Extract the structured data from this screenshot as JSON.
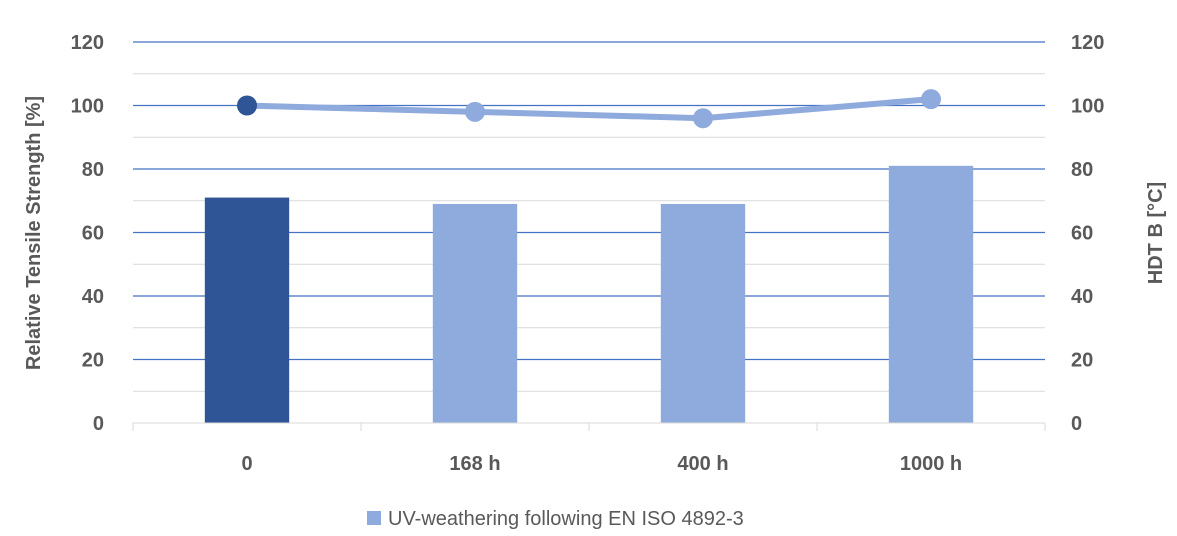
{
  "chart_data": {
    "type": "bar",
    "categories": [
      "0",
      "168 h",
      "400 h",
      "1000 h"
    ],
    "series": [
      {
        "name": "UV-weathering following EN ISO 4892-3",
        "chart_type": "bar",
        "axis": "left",
        "values": [
          71,
          69,
          69,
          81
        ],
        "colors": [
          "#2f5597",
          "#8faadc",
          "#8faadc",
          "#8faadc"
        ]
      },
      {
        "chart_type": "line",
        "axis": "right",
        "values": [
          100,
          98,
          96,
          102
        ],
        "colors": [
          "#2f5597",
          "#8faadc",
          "#8faadc",
          "#8faadc"
        ]
      }
    ],
    "ylabel": "Relative Tensile Strength [%]",
    "ylabel_right": "HDT B [°C]",
    "ylim": [
      0,
      120
    ],
    "ylim_right": [
      0,
      120
    ],
    "yticks": [
      "0",
      "20",
      "40",
      "60",
      "80",
      "100",
      "120"
    ],
    "yticks_right": [
      "0",
      "20",
      "40",
      "60",
      "80",
      "100",
      "120"
    ],
    "grid": true,
    "legend_position": "bottom",
    "colors": {
      "bar_highlight": "#2f5597",
      "bar": "#8faadc",
      "line": "#8faadc",
      "grid_major": "#4472c4",
      "grid_minor": "#d9d9d9",
      "text": "#595959"
    }
  }
}
